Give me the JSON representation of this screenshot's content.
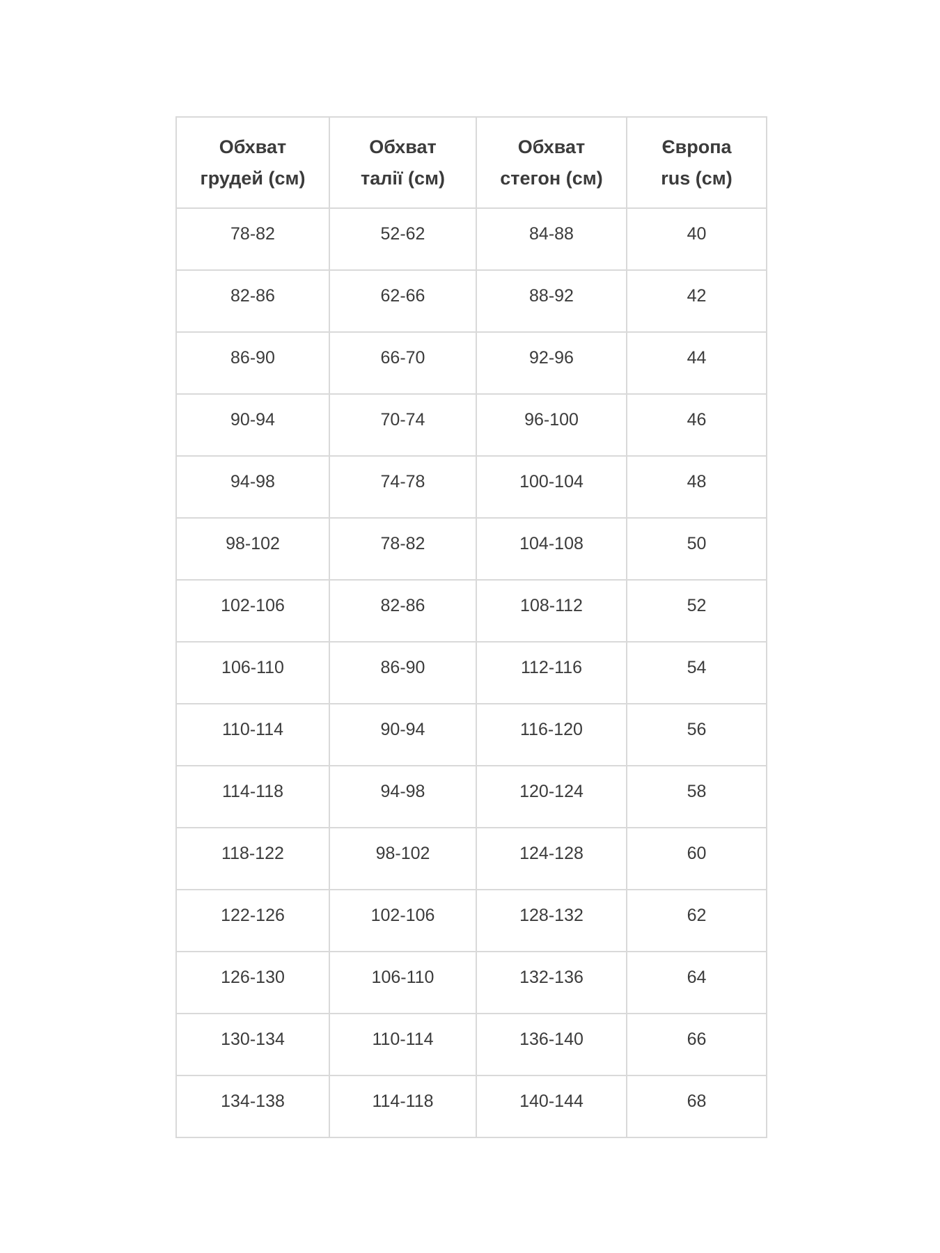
{
  "table": {
    "columns": [
      {
        "line1": "Обхват",
        "line2": "грудей (см)"
      },
      {
        "line1": "Обхват",
        "line2": "талії (см)"
      },
      {
        "line1": "Обхват",
        "line2": "стегон (см)"
      },
      {
        "line1": "Європа",
        "line2": "rus (см)"
      }
    ],
    "rows": [
      [
        "78-82",
        "52-62",
        "84-88",
        "40"
      ],
      [
        "82-86",
        "62-66",
        "88-92",
        "42"
      ],
      [
        "86-90",
        "66-70",
        "92-96",
        "44"
      ],
      [
        "90-94",
        "70-74",
        "96-100",
        "46"
      ],
      [
        "94-98",
        "74-78",
        "100-104",
        "48"
      ],
      [
        "98-102",
        "78-82",
        "104-108",
        "50"
      ],
      [
        "102-106",
        "82-86",
        "108-112",
        "52"
      ],
      [
        "106-110",
        "86-90",
        "112-116",
        "54"
      ],
      [
        "110-114",
        "90-94",
        "116-120",
        "56"
      ],
      [
        "114-118",
        "94-98",
        "120-124",
        "58"
      ],
      [
        "118-122",
        "98-102",
        "124-128",
        "60"
      ],
      [
        "122-126",
        "102-106",
        "128-132",
        "62"
      ],
      [
        "126-130",
        "106-110",
        "132-136",
        "64"
      ],
      [
        "130-134",
        "110-114",
        "136-140",
        "66"
      ],
      [
        "134-138",
        "114-118",
        "140-144",
        "68"
      ]
    ]
  },
  "colors": {
    "text": "#3b3b3b",
    "border": "#d9d9d9",
    "background": "#ffffff"
  }
}
